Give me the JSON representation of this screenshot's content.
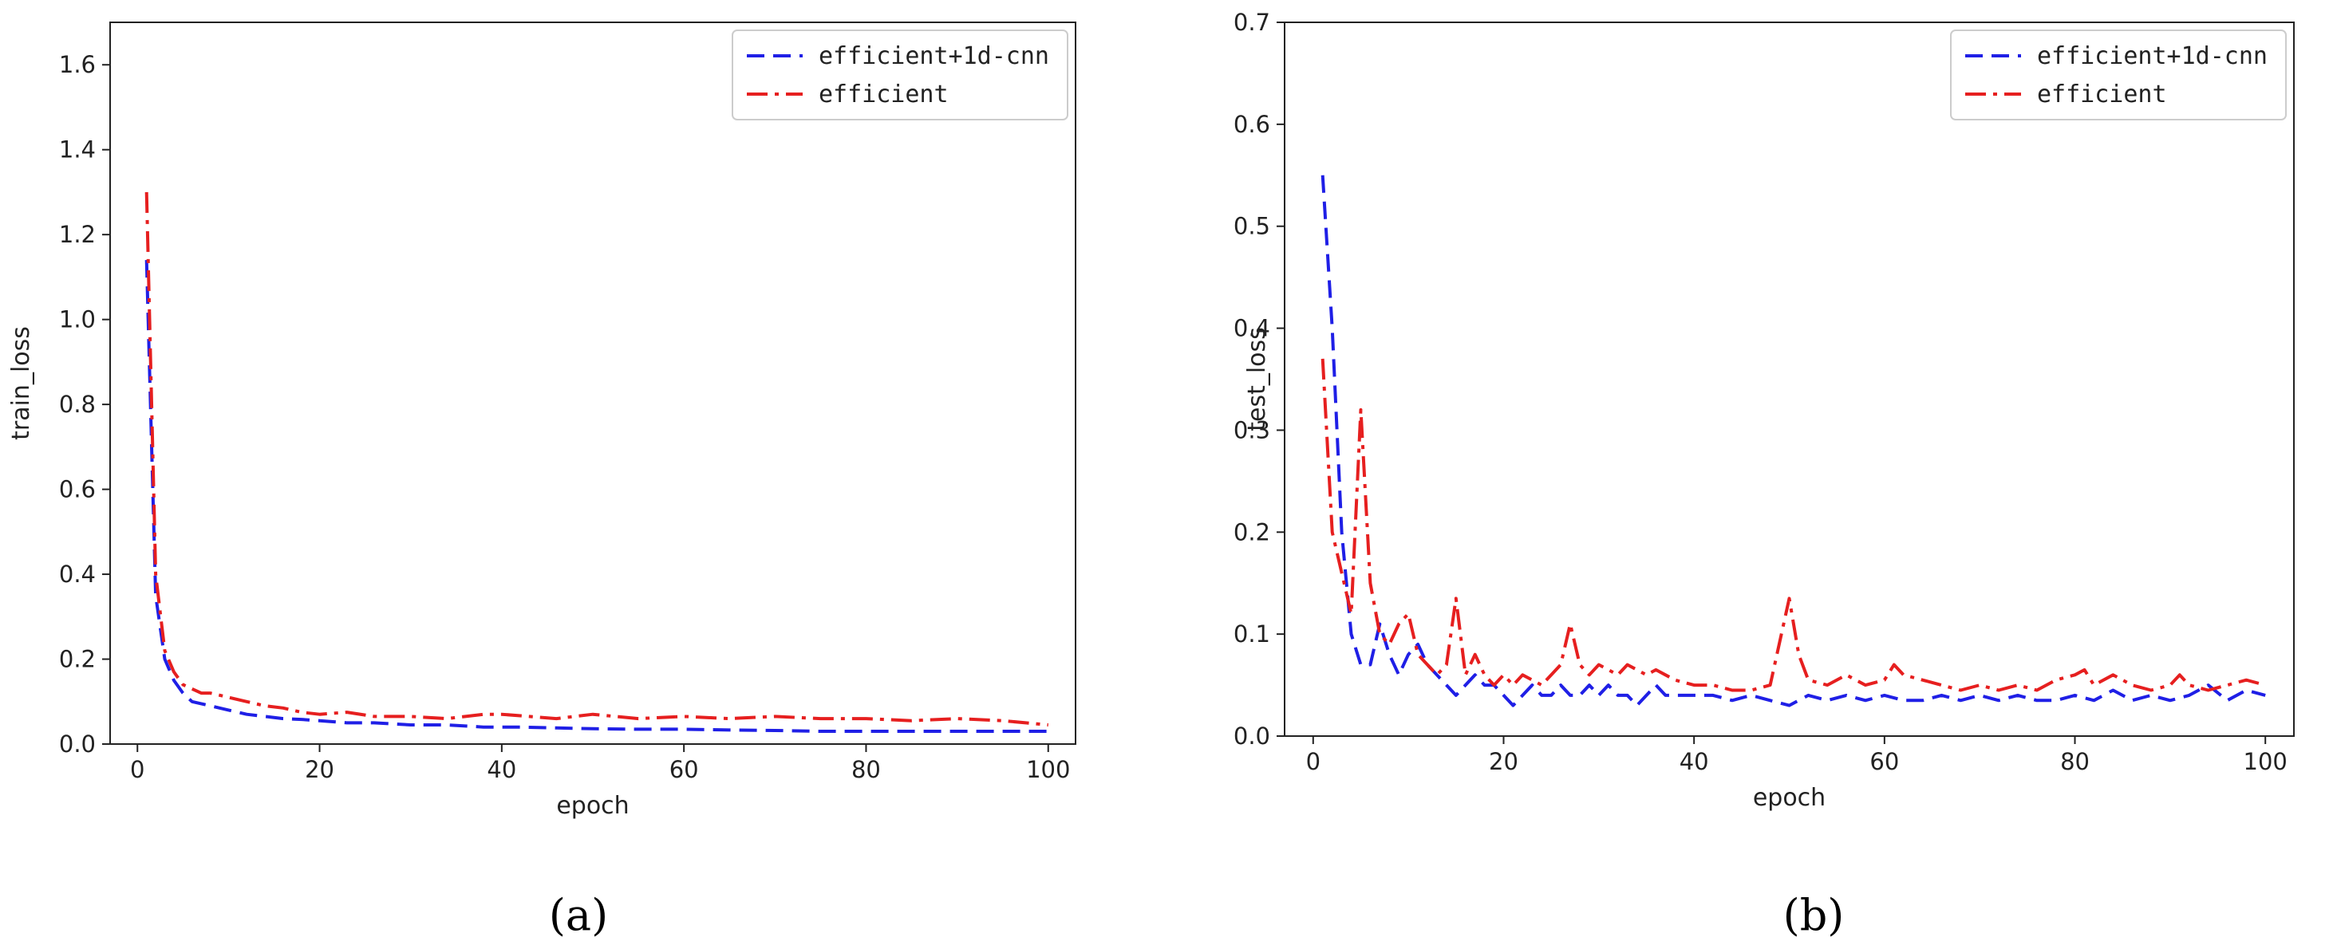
{
  "captions": [
    "(a)",
    "(b)"
  ],
  "colors": {
    "efficient+1d-cnn": "#1f1fe6",
    "efficient": "#e61f1f"
  },
  "chart_data": [
    {
      "type": "line",
      "xlabel": "epoch",
      "ylabel": "train_loss",
      "xlim": [
        -3,
        103
      ],
      "ylim": [
        0,
        1.7
      ],
      "xticks": [
        "0",
        "20",
        "40",
        "60",
        "80",
        "100"
      ],
      "yticks": [
        "0.0",
        "0.2",
        "0.4",
        "0.6",
        "0.8",
        "1.0",
        "1.2",
        "1.4",
        "1.6"
      ],
      "legend_position": "top-right",
      "series": [
        {
          "name": "efficient+1d-cnn",
          "style": "dashed",
          "color": "#1f1fe6",
          "x": [
            1,
            2,
            3,
            4,
            5,
            6,
            7,
            8,
            10,
            12,
            14,
            16,
            18,
            20,
            23,
            26,
            30,
            34,
            38,
            42,
            46,
            50,
            55,
            60,
            65,
            70,
            75,
            80,
            85,
            90,
            95,
            100
          ],
          "y": [
            1.14,
            0.35,
            0.2,
            0.15,
            0.12,
            0.1,
            0.095,
            0.09,
            0.08,
            0.07,
            0.065,
            0.06,
            0.058,
            0.055,
            0.05,
            0.05,
            0.045,
            0.045,
            0.04,
            0.04,
            0.038,
            0.036,
            0.035,
            0.035,
            0.033,
            0.032,
            0.03,
            0.03,
            0.03,
            0.03,
            0.03,
            0.03
          ]
        },
        {
          "name": "efficient",
          "style": "dashdot",
          "color": "#e61f1f",
          "x": [
            1,
            2,
            3,
            4,
            5,
            6,
            7,
            8,
            10,
            12,
            14,
            16,
            18,
            20,
            23,
            26,
            30,
            34,
            38,
            40,
            43,
            46,
            50,
            55,
            60,
            65,
            70,
            75,
            80,
            85,
            90,
            95,
            100
          ],
          "y": [
            1.3,
            0.4,
            0.22,
            0.17,
            0.14,
            0.13,
            0.12,
            0.12,
            0.11,
            0.1,
            0.09,
            0.085,
            0.075,
            0.07,
            0.075,
            0.065,
            0.065,
            0.06,
            0.07,
            0.07,
            0.065,
            0.06,
            0.07,
            0.06,
            0.065,
            0.06,
            0.065,
            0.06,
            0.06,
            0.055,
            0.06,
            0.055,
            0.045
          ]
        }
      ]
    },
    {
      "type": "line",
      "xlabel": "epoch",
      "ylabel": "test_loss",
      "xlim": [
        -3,
        103
      ],
      "ylim": [
        0,
        0.7
      ],
      "xticks": [
        "0",
        "20",
        "40",
        "60",
        "80",
        "100"
      ],
      "yticks": [
        "0.0",
        "0.1",
        "0.2",
        "0.3",
        "0.4",
        "0.5",
        "0.6",
        "0.7"
      ],
      "legend_position": "top-right",
      "series": [
        {
          "name": "efficient+1d-cnn",
          "style": "dashed",
          "color": "#1f1fe6",
          "x": [
            1,
            2,
            3,
            4,
            5,
            6,
            7,
            8,
            9,
            10,
            11,
            12,
            13,
            14,
            15,
            16,
            17,
            18,
            19,
            20,
            21,
            22,
            23,
            24,
            25,
            26,
            27,
            28,
            29,
            30,
            31,
            32,
            33,
            34,
            35,
            36,
            37,
            38,
            40,
            42,
            44,
            46,
            48,
            50,
            52,
            54,
            56,
            58,
            60,
            62,
            64,
            66,
            68,
            70,
            72,
            74,
            76,
            78,
            80,
            82,
            84,
            86,
            88,
            90,
            92,
            94,
            96,
            98,
            100
          ],
          "y": [
            0.55,
            0.4,
            0.2,
            0.1,
            0.07,
            0.07,
            0.11,
            0.08,
            0.06,
            0.08,
            0.09,
            0.07,
            0.06,
            0.05,
            0.04,
            0.05,
            0.06,
            0.05,
            0.05,
            0.04,
            0.03,
            0.04,
            0.05,
            0.04,
            0.04,
            0.05,
            0.04,
            0.04,
            0.05,
            0.04,
            0.05,
            0.04,
            0.04,
            0.03,
            0.04,
            0.05,
            0.04,
            0.04,
            0.04,
            0.04,
            0.035,
            0.04,
            0.035,
            0.03,
            0.04,
            0.035,
            0.04,
            0.035,
            0.04,
            0.035,
            0.035,
            0.04,
            0.035,
            0.04,
            0.035,
            0.04,
            0.035,
            0.035,
            0.04,
            0.035,
            0.045,
            0.035,
            0.04,
            0.035,
            0.04,
            0.05,
            0.035,
            0.045,
            0.04
          ]
        },
        {
          "name": "efficient",
          "style": "dashdot",
          "color": "#e61f1f",
          "x": [
            1,
            2,
            3,
            4,
            5,
            6,
            7,
            8,
            9,
            10,
            11,
            12,
            13,
            14,
            15,
            16,
            17,
            18,
            19,
            20,
            21,
            22,
            23,
            24,
            25,
            26,
            27,
            28,
            29,
            30,
            31,
            32,
            33,
            34,
            35,
            36,
            37,
            38,
            40,
            42,
            44,
            46,
            48,
            50,
            51,
            52,
            54,
            56,
            58,
            60,
            61,
            62,
            64,
            66,
            68,
            70,
            72,
            74,
            76,
            78,
            80,
            81,
            82,
            84,
            86,
            88,
            90,
            91,
            92,
            94,
            96,
            98,
            100
          ],
          "y": [
            0.37,
            0.2,
            0.16,
            0.12,
            0.32,
            0.15,
            0.1,
            0.09,
            0.11,
            0.12,
            0.08,
            0.07,
            0.06,
            0.07,
            0.135,
            0.06,
            0.08,
            0.06,
            0.05,
            0.06,
            0.05,
            0.06,
            0.055,
            0.05,
            0.06,
            0.07,
            0.11,
            0.07,
            0.06,
            0.07,
            0.065,
            0.06,
            0.07,
            0.065,
            0.06,
            0.065,
            0.06,
            0.055,
            0.05,
            0.05,
            0.045,
            0.045,
            0.05,
            0.135,
            0.08,
            0.055,
            0.05,
            0.06,
            0.05,
            0.055,
            0.07,
            0.06,
            0.055,
            0.05,
            0.045,
            0.05,
            0.045,
            0.05,
            0.045,
            0.055,
            0.06,
            0.065,
            0.05,
            0.06,
            0.05,
            0.045,
            0.05,
            0.06,
            0.05,
            0.045,
            0.05,
            0.055,
            0.05
          ]
        }
      ]
    }
  ]
}
